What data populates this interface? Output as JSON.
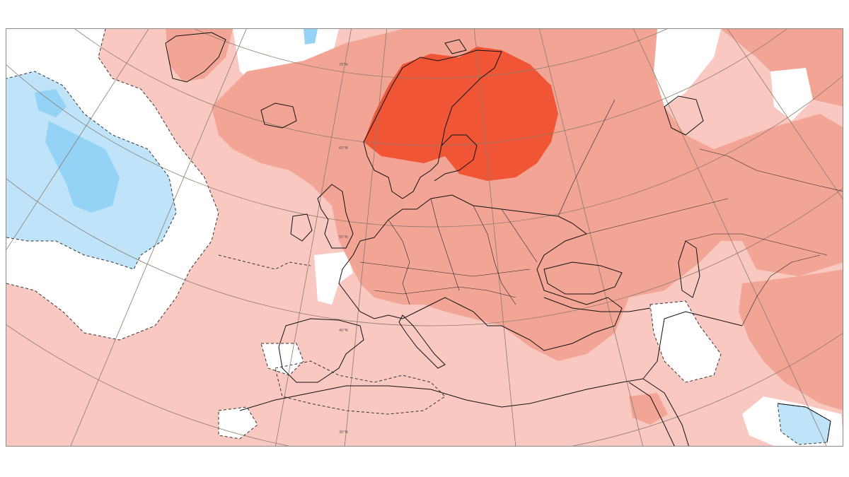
{
  "map": {
    "type": "anomaly-map",
    "region": "Europe",
    "projection": "polar-stereographic",
    "colors": {
      "ocean_white": "#ffffff",
      "warm_1": "#f9c8c0",
      "warm_2": "#f3a595",
      "warm_3": "#f08871",
      "warm_4": "#f05636",
      "cool_1": "#bfe4f9",
      "cool_2": "#94d3f6",
      "coast_line": "#111111",
      "grid_line": "#8c7b6b"
    },
    "latitude_labels": [
      "70°N",
      "60°N",
      "50°N",
      "40°N",
      "30°N"
    ]
  }
}
